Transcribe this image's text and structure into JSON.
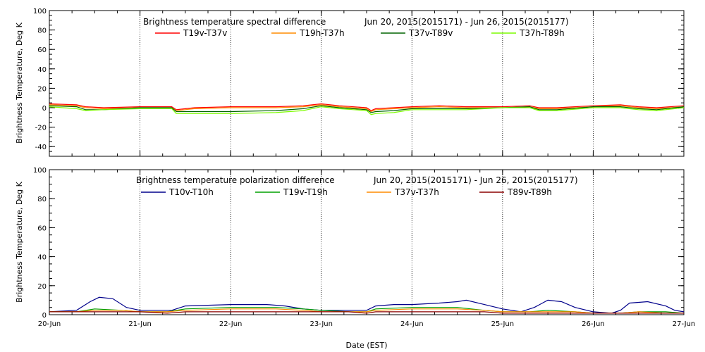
{
  "chart_data": [
    {
      "type": "line",
      "title": "Brightness temperature spectral difference",
      "date_range": "Jun 20, 2015(2015171) - Jun 26, 2015(2015177)",
      "ylabel": "Brightness Temperature, Deg K",
      "xlabel": "",
      "ylim": [
        -50,
        100
      ],
      "yticks": [
        -40,
        -20,
        0,
        20,
        40,
        60,
        80,
        100
      ],
      "xlim": [
        0,
        7
      ],
      "x_unit": "days since Jun 20",
      "xticks": [
        0,
        1,
        2,
        3,
        4,
        5,
        6,
        7
      ],
      "xtick_labels": [
        "",
        "",
        "",
        "",
        "",
        "",
        "",
        ""
      ],
      "vgrid_x": [
        1,
        2,
        3,
        4,
        5,
        6
      ],
      "legend_position": "top",
      "series": [
        {
          "name": "T19v-T37v",
          "color": "#ff0000",
          "x": [
            0,
            0.3,
            0.4,
            0.6,
            1.0,
            1.35,
            1.4,
            1.6,
            2.0,
            2.5,
            2.8,
            3.0,
            3.2,
            3.5,
            3.55,
            3.6,
            3.8,
            4.0,
            4.3,
            4.6,
            5.0,
            5.3,
            5.4,
            5.6,
            6.0,
            6.3,
            6.5,
            6.7,
            7.0
          ],
          "y": [
            4,
            3,
            1,
            0,
            1,
            1,
            -2,
            0,
            1,
            1,
            2,
            4,
            2,
            0,
            -3,
            -1,
            0,
            1,
            2,
            1,
            1,
            2,
            0,
            0,
            2,
            3,
            1,
            0,
            2
          ]
        },
        {
          "name": "T19h-T37h",
          "color": "#ff8c00",
          "x": [
            0,
            0.3,
            0.4,
            0.6,
            1.0,
            1.35,
            1.4,
            1.6,
            2.0,
            2.5,
            2.8,
            3.0,
            3.2,
            3.5,
            3.55,
            3.6,
            3.8,
            4.0,
            4.3,
            4.6,
            5.0,
            5.3,
            5.4,
            5.6,
            6.0,
            6.3,
            6.5,
            6.7,
            7.0
          ],
          "y": [
            3,
            2,
            0,
            -1,
            0,
            0,
            -3,
            -1,
            0,
            0,
            1,
            3,
            1,
            -1,
            -4,
            -2,
            -1,
            0,
            1,
            0,
            0,
            1,
            -1,
            -1,
            1,
            2,
            0,
            -1,
            1
          ]
        },
        {
          "name": "T37v-T89v",
          "color": "#006400",
          "x": [
            0,
            0.3,
            0.4,
            0.6,
            1.0,
            1.35,
            1.4,
            1.6,
            2.0,
            2.5,
            2.8,
            3.0,
            3.2,
            3.5,
            3.55,
            3.6,
            3.8,
            4.0,
            4.3,
            4.6,
            5.0,
            5.3,
            5.4,
            5.6,
            6.0,
            6.3,
            6.5,
            6.7,
            7.0
          ],
          "y": [
            2,
            1,
            -2,
            -2,
            0,
            0,
            -4,
            -4,
            -4,
            -3,
            -1,
            2,
            0,
            -2,
            -5,
            -4,
            -3,
            -1,
            -1,
            -1,
            0,
            1,
            -2,
            -2,
            1,
            1,
            -1,
            -2,
            1
          ]
        },
        {
          "name": "T37h-T89h",
          "color": "#7cfc00",
          "x": [
            0,
            0.3,
            0.4,
            0.6,
            1.0,
            1.35,
            1.4,
            1.6,
            2.0,
            2.5,
            2.8,
            3.0,
            3.2,
            3.5,
            3.55,
            3.6,
            3.8,
            4.0,
            4.3,
            4.6,
            5.0,
            5.3,
            5.4,
            5.6,
            6.0,
            6.3,
            6.5,
            6.7,
            7.0
          ],
          "y": [
            1,
            -1,
            -3,
            -2,
            -1,
            -1,
            -6,
            -6,
            -6,
            -5,
            -3,
            1,
            -1,
            -3,
            -7,
            -6,
            -5,
            -2,
            -2,
            -2,
            0,
            0,
            -3,
            -3,
            0,
            0,
            -2,
            -3,
            0
          ]
        }
      ]
    },
    {
      "type": "line",
      "title": "Brightness temperature polarization difference",
      "date_range": "Jun 20, 2015(2015171) - Jun 26, 2015(2015177)",
      "ylabel": "Brightness Temperature, Deg K",
      "xlabel": "Date (EST)",
      "ylim": [
        0,
        100
      ],
      "yticks": [
        0,
        20,
        40,
        60,
        80,
        100
      ],
      "xlim": [
        0,
        7
      ],
      "x_unit": "days since Jun 20",
      "xticks": [
        0,
        1,
        2,
        3,
        4,
        5,
        6,
        7
      ],
      "xtick_labels": [
        "20-Jun",
        "21-Jun",
        "22-Jun",
        "23-Jun",
        "24-Jun",
        "25-Jun",
        "26-Jun",
        "27-Jun"
      ],
      "vgrid_x": [
        1,
        2,
        3,
        4,
        5,
        6
      ],
      "legend_position": "top",
      "series": [
        {
          "name": "T10v-T10h",
          "color": "#00008b",
          "x": [
            0,
            0.3,
            0.45,
            0.55,
            0.7,
            0.85,
            1.0,
            1.2,
            1.35,
            1.5,
            2.0,
            2.4,
            2.6,
            2.8,
            3.0,
            3.3,
            3.5,
            3.6,
            3.8,
            4.0,
            4.3,
            4.5,
            4.6,
            4.8,
            5.0,
            5.2,
            5.35,
            5.5,
            5.65,
            5.8,
            6.0,
            6.2,
            6.3,
            6.4,
            6.6,
            6.8,
            6.9,
            7.0
          ],
          "y": [
            2,
            3,
            9,
            12,
            11,
            5,
            3,
            3,
            3,
            6,
            7,
            7,
            6,
            4,
            3,
            3,
            3,
            6,
            7,
            7,
            8,
            9,
            10,
            7,
            4,
            2,
            5,
            10,
            9,
            5,
            2,
            1,
            3,
            8,
            9,
            6,
            3,
            2
          ]
        },
        {
          "name": "T19v-T19h",
          "color": "#00a000",
          "x": [
            0,
            0.3,
            0.5,
            0.8,
            1.0,
            1.3,
            1.5,
            2.0,
            2.5,
            2.8,
            3.0,
            3.3,
            3.5,
            3.6,
            4.0,
            4.5,
            4.8,
            5.0,
            5.3,
            5.5,
            5.8,
            6.0,
            6.3,
            6.5,
            6.8,
            7.0
          ],
          "y": [
            2,
            2,
            4,
            3,
            2,
            2,
            4,
            5,
            5,
            4,
            3,
            2,
            2,
            4,
            5,
            5,
            3,
            2,
            2,
            3,
            2,
            1,
            1,
            2,
            2,
            1
          ]
        },
        {
          "name": "T37v-T37h",
          "color": "#ff8c00",
          "x": [
            0,
            0.3,
            0.5,
            0.8,
            1.0,
            1.3,
            1.5,
            2.0,
            2.5,
            2.8,
            3.0,
            3.3,
            3.5,
            3.6,
            4.0,
            4.5,
            4.8,
            5.0,
            5.3,
            5.5,
            5.8,
            6.0,
            6.3,
            6.5,
            6.8,
            7.0
          ],
          "y": [
            2,
            2,
            3,
            3,
            2,
            2,
            3,
            4,
            4,
            3,
            2,
            2,
            2,
            3,
            4,
            4,
            3,
            2,
            2,
            2,
            2,
            1,
            1,
            2,
            1,
            1
          ]
        },
        {
          "name": "T89v-T89h",
          "color": "#8b0000",
          "x": [
            0,
            0.3,
            0.5,
            0.8,
            1.0,
            1.3,
            1.5,
            2.0,
            2.5,
            2.8,
            3.0,
            3.3,
            3.5,
            3.6,
            4.0,
            4.5,
            4.8,
            5.0,
            5.3,
            5.5,
            5.8,
            6.0,
            6.3,
            6.5,
            6.8,
            7.0
          ],
          "y": [
            2,
            2,
            2,
            2,
            2,
            1,
            2,
            2,
            2,
            2,
            2,
            2,
            1,
            2,
            2,
            2,
            2,
            1,
            1,
            1,
            1,
            1,
            1,
            1,
            1,
            1
          ]
        }
      ]
    }
  ]
}
